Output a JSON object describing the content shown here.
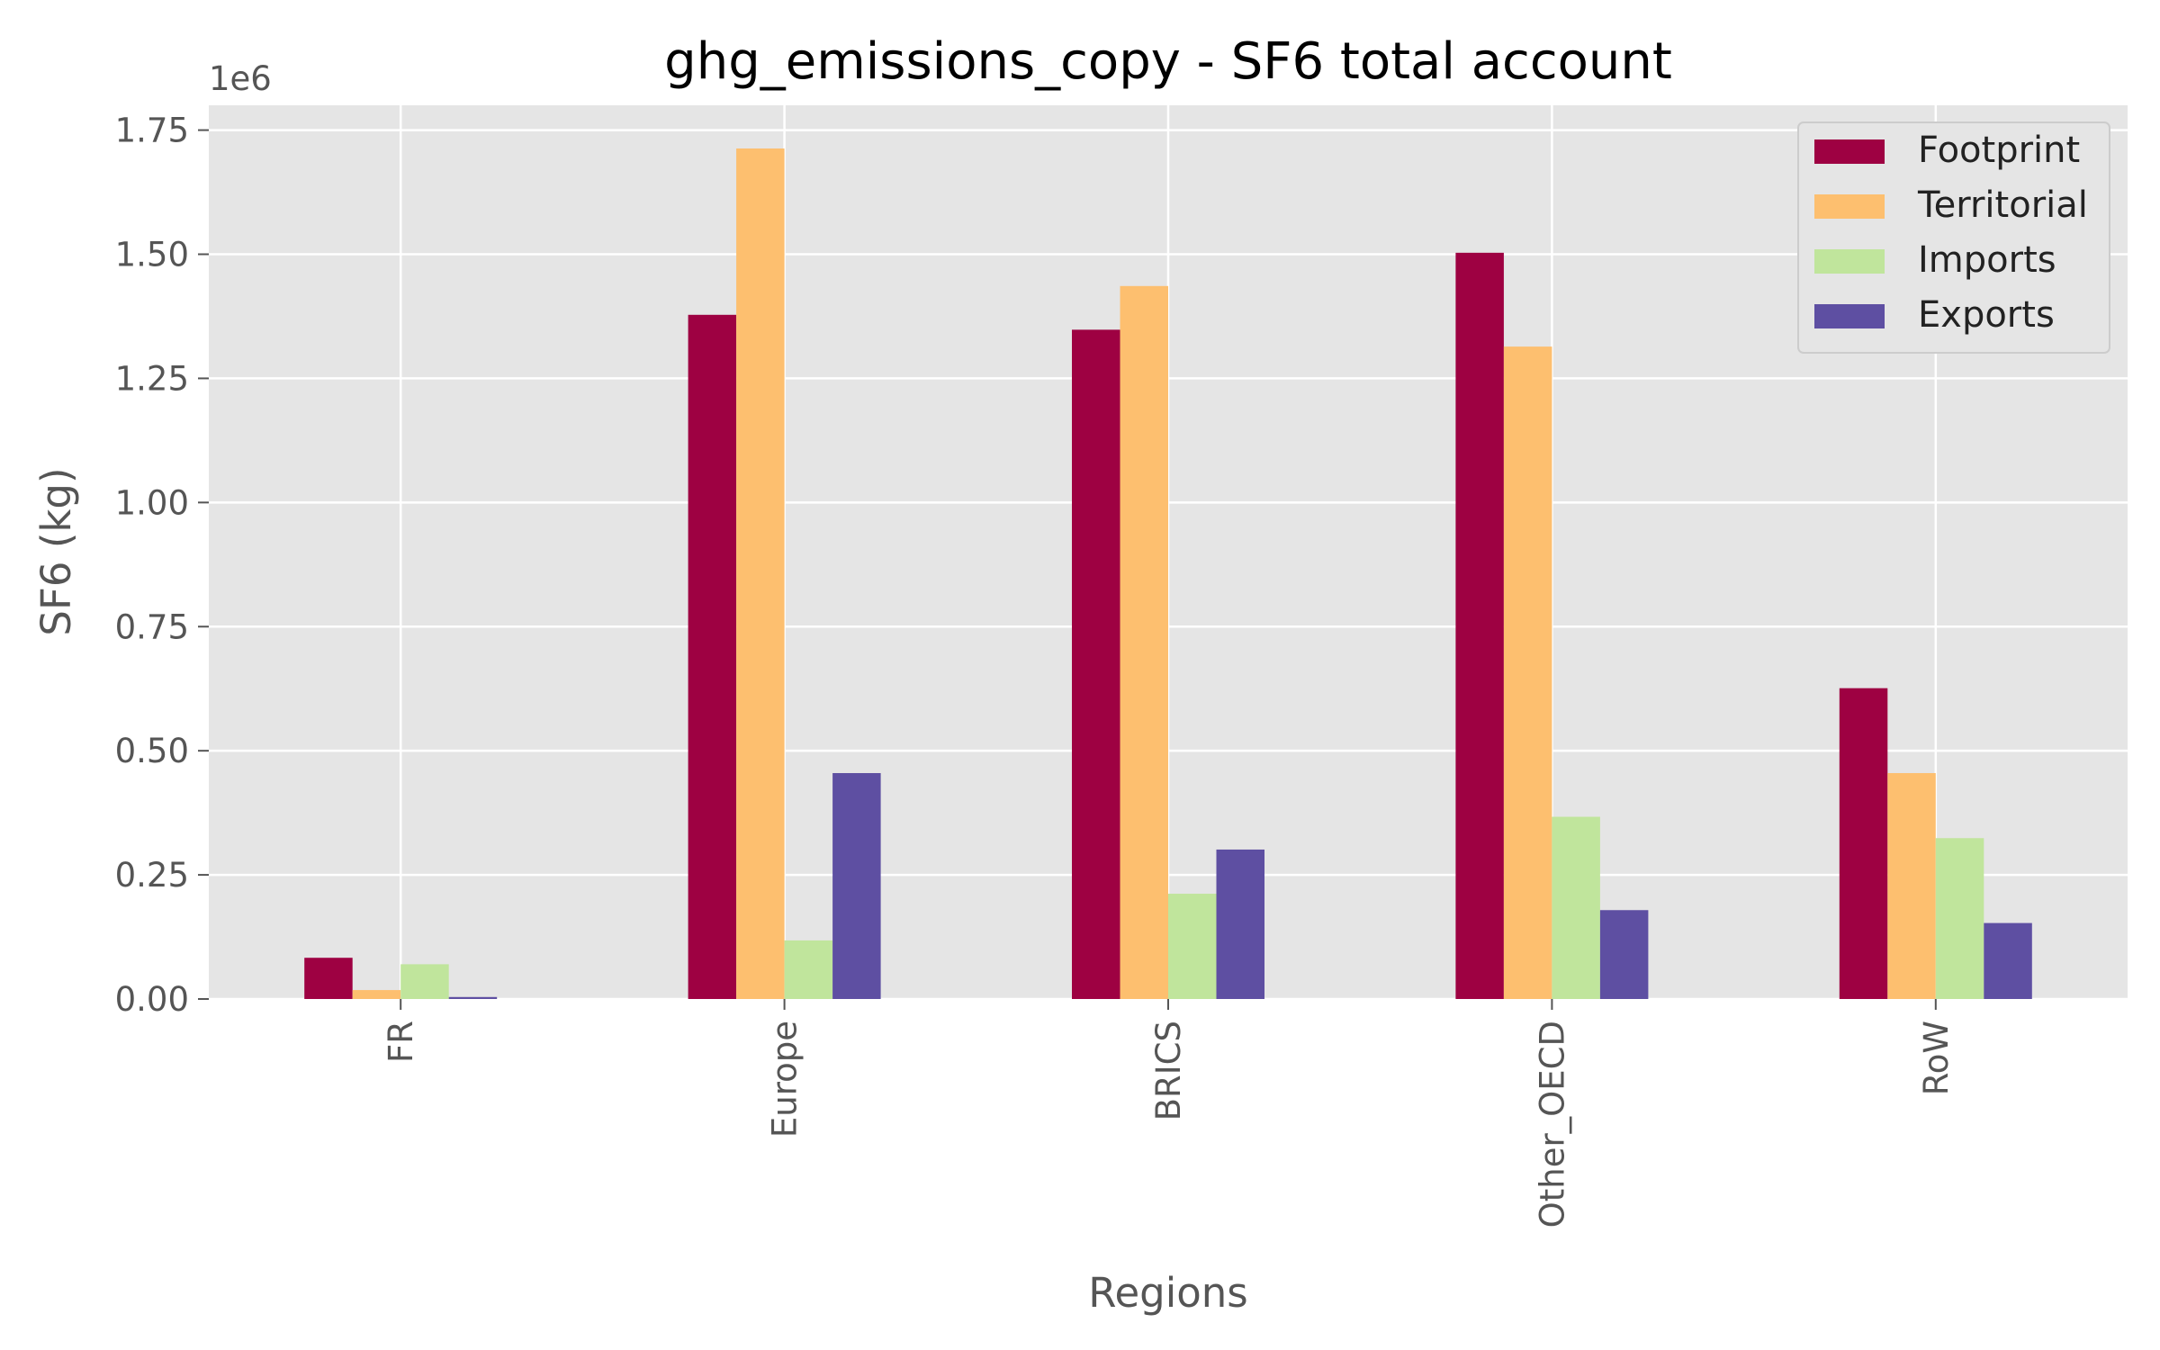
{
  "chart_data": {
    "type": "bar",
    "title": "ghg_emissions_copy - SF6 total account",
    "xlabel": "Regions",
    "ylabel": "SF6 (kg)",
    "y_offset_text": "1e6",
    "categories": [
      "FR",
      "Europe",
      "BRICS",
      "Other_OECD",
      "RoW"
    ],
    "series": [
      {
        "name": "Footprint",
        "color": "#9e0142",
        "values": [
          83000,
          1378000,
          1348000,
          1503000,
          626000
        ]
      },
      {
        "name": "Territorial",
        "color": "#fdbf6f",
        "values": [
          18000,
          1713000,
          1436000,
          1314000,
          455000
        ]
      },
      {
        "name": "Imports",
        "color": "#c0e59c",
        "values": [
          70000,
          118000,
          212000,
          367000,
          324000
        ]
      },
      {
        "name": "Exports",
        "color": "#5e4fa2",
        "values": [
          4000,
          455000,
          301000,
          179000,
          153000
        ]
      }
    ],
    "ylim": [
      0,
      1800000
    ],
    "yticks": [
      0,
      250000,
      500000,
      750000,
      1000000,
      1250000,
      1500000,
      1750000
    ],
    "ytick_labels": [
      "0.00",
      "0.25",
      "0.50",
      "0.75",
      "1.00",
      "1.25",
      "1.50",
      "1.75"
    ],
    "grid": true,
    "legend_position": "top-right",
    "background_color": "#e5e5e5",
    "grid_color": "#ffffff"
  }
}
